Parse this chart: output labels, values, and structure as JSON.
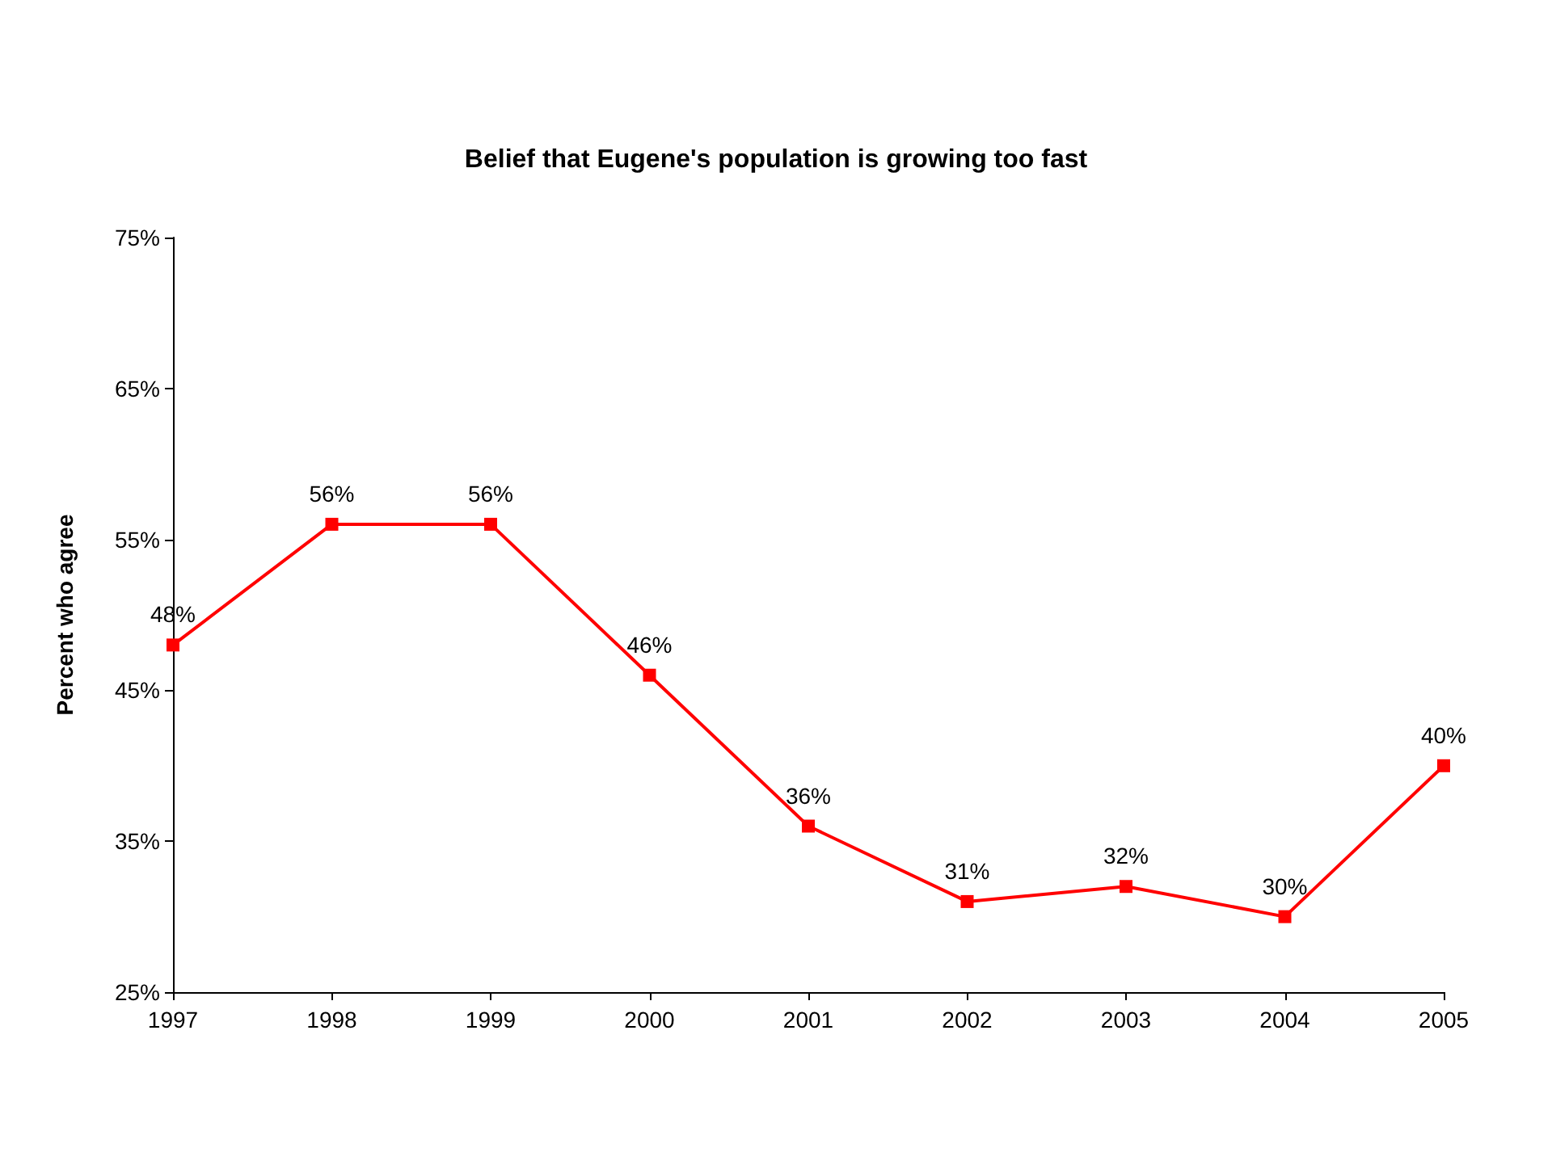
{
  "chart_data": {
    "type": "line",
    "title": "Belief that Eugene's population is growing too fast",
    "ylabel": "Percent who agree",
    "categories": [
      "1997",
      "1998",
      "1999",
      "2000",
      "2001",
      "2002",
      "2003",
      "2004",
      "2005"
    ],
    "series": [
      {
        "color": "#ff0000",
        "values": [
          48,
          56,
          56,
          46,
          36,
          31,
          32,
          30,
          40
        ],
        "value_labels": [
          "48%",
          "56%",
          "56%",
          "46%",
          "36%",
          "31%",
          "32%",
          "30%",
          "40%"
        ]
      }
    ],
    "ylim": [
      25,
      75
    ],
    "yticks": [
      {
        "value": 25,
        "label": "25%"
      },
      {
        "value": 35,
        "label": "35%"
      },
      {
        "value": 45,
        "label": "45%"
      },
      {
        "value": 55,
        "label": "55%"
      },
      {
        "value": 65,
        "label": "65%"
      },
      {
        "value": 75,
        "label": "75%"
      }
    ],
    "grid": false,
    "marker": "square",
    "line_style": "solid"
  }
}
